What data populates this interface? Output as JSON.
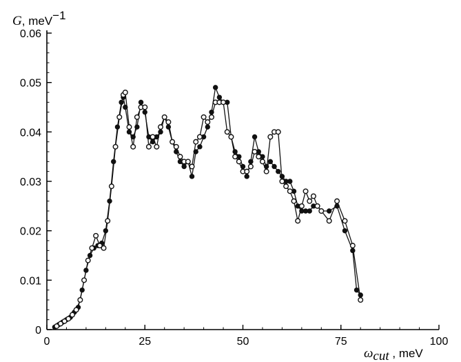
{
  "chart_data": {
    "type": "line",
    "title": "",
    "ylabel": "G, meV",
    "ylabel_symbol": "G",
    "ylabel_unit": "meV",
    "ylabel_exponent": "−1",
    "xlabel_symbol": "ω",
    "xlabel_subscript": "cut",
    "xlabel_unit": "meV",
    "xlim": [
      0,
      100
    ],
    "ylim": [
      0,
      0.06
    ],
    "x_ticks": [
      0,
      25,
      50,
      75,
      100
    ],
    "x_tick_labels": [
      "0",
      "25",
      "50",
      "75",
      "100"
    ],
    "y_ticks": [
      0,
      0.01,
      0.02,
      0.03,
      0.04,
      0.05,
      0.06
    ],
    "y_tick_labels": [
      "0",
      "0.01",
      "0.02",
      "0.03",
      "0.04",
      "0.05",
      "0.06"
    ],
    "grid": false,
    "series": [
      {
        "marker": "filled-circle",
        "color": "#111111",
        "x": [
          2,
          3,
          4,
          5,
          6,
          7,
          8,
          9,
          10,
          11,
          12,
          13,
          14,
          15,
          16,
          17,
          18,
          19,
          19.5,
          20,
          21,
          22,
          23,
          24,
          25,
          26,
          27,
          28,
          29,
          30,
          31,
          32,
          33,
          34,
          35,
          36,
          37,
          38,
          39,
          40,
          41,
          42,
          43,
          44,
          45,
          46,
          47,
          48,
          49,
          50,
          51,
          52,
          53,
          54,
          55,
          56,
          57,
          58,
          59,
          60,
          61,
          62,
          63,
          64,
          65,
          66,
          67,
          68,
          69,
          70,
          72,
          74,
          76,
          78,
          79,
          80
        ],
        "y": [
          0.0005,
          0.001,
          0.0015,
          0.002,
          0.0025,
          0.0035,
          0.0045,
          0.008,
          0.012,
          0.015,
          0.0165,
          0.017,
          0.0175,
          0.02,
          0.026,
          0.034,
          0.041,
          0.046,
          0.047,
          0.045,
          0.04,
          0.039,
          0.041,
          0.046,
          0.044,
          0.039,
          0.038,
          0.039,
          0.04,
          0.043,
          0.041,
          0.038,
          0.036,
          0.034,
          0.033,
          0.034,
          0.031,
          0.036,
          0.037,
          0.039,
          0.041,
          0.044,
          0.049,
          0.047,
          0.046,
          0.046,
          0.039,
          0.036,
          0.035,
          0.033,
          0.031,
          0.034,
          0.039,
          0.036,
          0.035,
          0.033,
          0.034,
          0.033,
          0.032,
          0.031,
          0.03,
          0.03,
          0.028,
          0.025,
          0.024,
          0.024,
          0.024,
          0.025,
          0.025,
          0.024,
          0.024,
          0.025,
          0.02,
          0.016,
          0.008,
          0.007
        ]
      },
      {
        "marker": "open-circle",
        "color": "#111111",
        "x": [
          2.5,
          3.5,
          4.5,
          5.5,
          6.5,
          7.5,
          8.5,
          9.5,
          10.5,
          11.5,
          12.5,
          13.5,
          14.5,
          15.5,
          16.5,
          17.5,
          18.5,
          19.5,
          20,
          21,
          22,
          23,
          24,
          25,
          26,
          27,
          28,
          29,
          30,
          31,
          32,
          33,
          34,
          35,
          36,
          37,
          38,
          39,
          40,
          41,
          42,
          43,
          44,
          45,
          46,
          47,
          48,
          49,
          50,
          51,
          52,
          53,
          54,
          55,
          56,
          57,
          58,
          59,
          60,
          61,
          62,
          63,
          64,
          65,
          66,
          67,
          68,
          69,
          70,
          72,
          74,
          76,
          78,
          80
        ],
        "y": [
          0.0007,
          0.0012,
          0.0017,
          0.0022,
          0.003,
          0.004,
          0.006,
          0.01,
          0.014,
          0.0165,
          0.019,
          0.017,
          0.0165,
          0.022,
          0.029,
          0.037,
          0.043,
          0.0475,
          0.048,
          0.041,
          0.037,
          0.043,
          0.045,
          0.045,
          0.037,
          0.039,
          0.037,
          0.041,
          0.043,
          0.042,
          0.038,
          0.037,
          0.035,
          0.034,
          0.034,
          0.033,
          0.038,
          0.039,
          0.043,
          0.042,
          0.043,
          0.046,
          0.046,
          0.046,
          0.04,
          0.039,
          0.035,
          0.034,
          0.032,
          0.032,
          0.033,
          0.036,
          0.035,
          0.034,
          0.032,
          0.039,
          0.04,
          0.04,
          0.03,
          0.029,
          0.028,
          0.026,
          0.022,
          0.025,
          0.028,
          0.026,
          0.027,
          0.025,
          0.024,
          0.022,
          0.026,
          0.022,
          0.017,
          0.006
        ]
      }
    ]
  }
}
